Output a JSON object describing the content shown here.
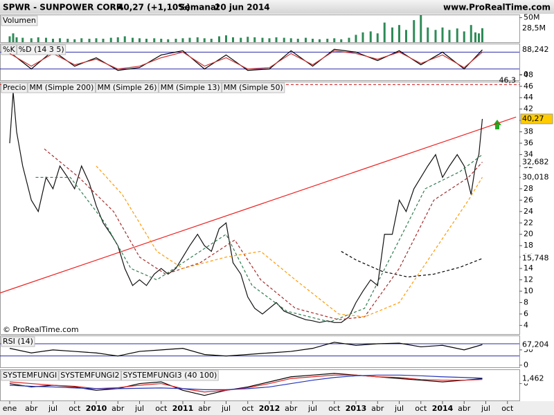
{
  "header": {
    "symbol": "SPWR - SUNPOWER CORP.",
    "quote": "40,27 (+1,10%)",
    "period": "Semanal",
    "date": "20 jun 2014",
    "site": "www.ProRealTime.com"
  },
  "watermark": "© ProRealTime.com",
  "x_axis": {
    "ticks": [
      {
        "value": 2009.0,
        "label": "ene"
      },
      {
        "value": 2009.25,
        "label": "abr"
      },
      {
        "value": 2009.5,
        "label": "jul"
      },
      {
        "value": 2009.75,
        "label": "oct"
      },
      {
        "value": 2010.0,
        "label": "2010"
      },
      {
        "value": 2010.25,
        "label": "abr"
      },
      {
        "value": 2010.5,
        "label": "jul"
      },
      {
        "value": 2010.75,
        "label": "oct"
      },
      {
        "value": 2011.0,
        "label": "2011"
      },
      {
        "value": 2011.25,
        "label": "abr"
      },
      {
        "value": 2011.5,
        "label": "jul"
      },
      {
        "value": 2011.75,
        "label": "oct"
      },
      {
        "value": 2012.0,
        "label": "2012"
      },
      {
        "value": 2012.25,
        "label": "abr"
      },
      {
        "value": 2012.5,
        "label": "jul"
      },
      {
        "value": 2012.75,
        "label": "oct"
      },
      {
        "value": 2013.0,
        "label": "2013"
      },
      {
        "value": 2013.25,
        "label": "abr"
      },
      {
        "value": 2013.5,
        "label": "jul"
      },
      {
        "value": 2013.75,
        "label": "oct"
      },
      {
        "value": 2014.0,
        "label": "2014"
      },
      {
        "value": 2014.25,
        "label": "abr"
      },
      {
        "value": 2014.5,
        "label": "jul"
      },
      {
        "value": 2014.75,
        "label": "oct"
      }
    ]
  },
  "chart_data": [
    {
      "type": "bar",
      "ylim": [
        0,
        55
      ],
      "yticks": [
        {
          "value": 50,
          "label": "50M"
        }
      ],
      "x": [
        2009.0,
        2009.04,
        2009.08,
        2009.15,
        2009.25,
        2009.33,
        2009.42,
        2009.5,
        2009.58,
        2009.67,
        2009.75,
        2009.83,
        2009.92,
        2010.0,
        2010.08,
        2010.17,
        2010.25,
        2010.33,
        2010.42,
        2010.5,
        2010.58,
        2010.67,
        2010.75,
        2010.83,
        2010.92,
        2011.0,
        2011.08,
        2011.17,
        2011.25,
        2011.33,
        2011.42,
        2011.5,
        2011.58,
        2011.67,
        2011.75,
        2011.83,
        2011.92,
        2012.0,
        2012.08,
        2012.17,
        2012.25,
        2012.33,
        2012.42,
        2012.5,
        2012.58,
        2012.67,
        2012.75,
        2012.83,
        2012.92,
        2013.0,
        2013.08,
        2013.17,
        2013.25,
        2013.33,
        2013.42,
        2013.5,
        2013.58,
        2013.67,
        2013.75,
        2013.83,
        2013.92,
        2014.0,
        2014.08,
        2014.17,
        2014.25,
        2014.33,
        2014.38,
        2014.42,
        2014.46
      ],
      "series": [
        {
          "name": "Volumen",
          "color": "#2e8b57",
          "last": {
            "value": 28.5,
            "label": "28,5M"
          },
          "values": [
            12,
            18,
            10,
            9,
            8,
            10,
            9,
            7,
            8,
            7,
            6,
            8,
            7,
            8,
            7,
            9,
            10,
            12,
            9,
            8,
            7,
            8,
            7,
            6,
            7,
            8,
            9,
            10,
            8,
            7,
            12,
            14,
            10,
            9,
            11,
            10,
            9,
            8,
            10,
            9,
            8,
            7,
            9,
            7,
            6,
            7,
            8,
            6,
            9,
            15,
            20,
            22,
            18,
            40,
            30,
            35,
            25,
            45,
            55,
            30,
            25,
            30,
            25,
            28,
            22,
            35,
            20,
            18,
            28.5
          ]
        }
      ]
    },
    {
      "type": "line",
      "ylim": [
        -20,
        108
      ],
      "yticks": [
        0
      ],
      "levels": [
        80,
        20
      ],
      "x": [
        2009.0,
        2009.25,
        2009.5,
        2009.75,
        2010.0,
        2010.25,
        2010.5,
        2010.75,
        2011.0,
        2011.25,
        2011.5,
        2011.75,
        2012.0,
        2012.25,
        2012.5,
        2012.75,
        2013.0,
        2013.25,
        2013.5,
        2013.75,
        2014.0,
        2014.25,
        2014.46
      ],
      "series": [
        {
          "name": "%K",
          "color": "#000000",
          "last": {
            "value": 88.242,
            "label": "88,242"
          },
          "values": [
            80,
            20,
            85,
            30,
            60,
            15,
            25,
            70,
            85,
            20,
            70,
            15,
            20,
            85,
            30,
            90,
            80,
            50,
            85,
            35,
            80,
            20,
            88.242
          ]
        },
        {
          "name": "%D (14 3 5)",
          "color": "#cc3333",
          "values": [
            75,
            30,
            75,
            35,
            55,
            20,
            30,
            60,
            80,
            30,
            60,
            20,
            25,
            75,
            35,
            85,
            75,
            55,
            80,
            40,
            70,
            25,
            80
          ]
        }
      ]
    },
    {
      "type": "line",
      "ylim": [
        2.47,
        46.7
      ],
      "yticks": [
        4,
        6,
        8,
        10,
        12,
        14,
        16,
        18,
        20,
        22,
        24,
        26,
        28,
        30,
        32,
        34,
        36,
        38,
        40,
        42,
        44,
        46,
        48
      ],
      "resistance": {
        "value": 46.3,
        "label": "46,3",
        "color": "#cc0000"
      },
      "trendline": {
        "x": [
          2008.89,
          2014.85
        ],
        "values": [
          9.7,
          40.6
        ],
        "color": "#ee2222"
      },
      "x": [
        2009.0,
        2009.04,
        2009.08,
        2009.15,
        2009.25,
        2009.33,
        2009.42,
        2009.5,
        2009.58,
        2009.67,
        2009.75,
        2009.83,
        2009.92,
        2010.0,
        2010.08,
        2010.17,
        2010.25,
        2010.33,
        2010.42,
        2010.5,
        2010.58,
        2010.67,
        2010.75,
        2010.83,
        2010.92,
        2011.0,
        2011.08,
        2011.17,
        2011.25,
        2011.33,
        2011.42,
        2011.5,
        2011.58,
        2011.67,
        2011.75,
        2011.83,
        2011.92,
        2012.0,
        2012.08,
        2012.17,
        2012.25,
        2012.33,
        2012.42,
        2012.5,
        2012.58,
        2012.67,
        2012.75,
        2012.83,
        2012.92,
        2013.0,
        2013.08,
        2013.17,
        2013.25,
        2013.33,
        2013.42,
        2013.5,
        2013.58,
        2013.67,
        2013.75,
        2013.83,
        2013.92,
        2014.0,
        2014.08,
        2014.17,
        2014.25,
        2014.33,
        2014.38,
        2014.42,
        2014.46
      ],
      "series": [
        {
          "name": "Precio",
          "color": "#111111",
          "box": "#ffcc00",
          "last": {
            "value": 40.27,
            "label": "40,27"
          },
          "values": [
            36,
            45,
            38,
            32,
            26,
            24,
            30,
            28,
            32,
            30,
            28,
            32,
            29,
            25,
            22,
            20,
            18,
            14,
            11,
            12,
            11,
            13,
            14,
            13,
            14,
            16,
            18,
            20,
            18,
            17,
            21,
            22,
            15,
            13,
            9,
            7,
            6,
            7,
            8,
            6.5,
            6,
            5.5,
            5,
            4.8,
            4.5,
            4.8,
            4.5,
            4.5,
            5.5,
            8,
            10,
            12,
            11,
            20,
            20,
            26,
            24,
            28,
            30,
            32,
            34,
            30,
            32,
            34,
            32,
            27,
            32,
            34,
            40.27
          ]
        },
        {
          "name": "MM (Simple 200)",
          "color": "#000000",
          "dash": true,
          "last": {
            "value": 15.748,
            "label": "15,748"
          },
          "x": [
            2012.83,
            2013.0,
            2013.3,
            2013.6,
            2013.9,
            2014.2,
            2014.46
          ],
          "values": [
            17,
            15.5,
            13.5,
            12.5,
            13,
            14.2,
            15.748
          ]
        },
        {
          "name": "MM (Simple 26)",
          "color": "#a52a2a",
          "dash": true,
          "last": {
            "value": 32.682,
            "label": "32,682"
          },
          "x": [
            2009.4,
            2009.8,
            2010.2,
            2010.5,
            2010.8,
            2011.2,
            2011.6,
            2011.9,
            2012.3,
            2012.8,
            2013.1,
            2013.5,
            2013.9,
            2014.3,
            2014.46
          ],
          "values": [
            35,
            30,
            24,
            16,
            13,
            15,
            19,
            12,
            7,
            5,
            5.5,
            14,
            26,
            30,
            32.682
          ]
        },
        {
          "name": "MM (Simple 13)",
          "color": "#2e7d4f",
          "dash": true,
          "x": [
            2009.3,
            2009.7,
            2010.1,
            2010.4,
            2010.7,
            2011.1,
            2011.5,
            2011.8,
            2012.2,
            2012.7,
            2013.1,
            2013.4,
            2013.8,
            2014.2,
            2014.46
          ],
          "values": [
            30,
            30,
            22,
            14,
            12,
            16,
            20,
            11,
            6.5,
            4.6,
            7,
            16,
            28,
            31,
            34
          ]
        },
        {
          "name": "MM (Simple 50)",
          "color": "#ff9900",
          "dash": true,
          "last": {
            "value": 30.018,
            "label": "30,018"
          },
          "x": [
            2010.0,
            2010.3,
            2010.7,
            2011.0,
            2011.5,
            2011.9,
            2012.3,
            2012.8,
            2013.1,
            2013.5,
            2013.9,
            2014.3,
            2014.46
          ],
          "values": [
            32,
            27,
            17,
            14,
            16,
            17,
            12,
            6,
            5.5,
            8,
            17,
            26,
            30.018
          ]
        }
      ]
    },
    {
      "type": "line",
      "ylim": [
        -7,
        95
      ],
      "yticks": [
        0,
        50
      ],
      "levels": [
        70,
        30
      ],
      "x": [
        2009.0,
        2009.25,
        2009.5,
        2009.75,
        2010.0,
        2010.25,
        2010.5,
        2010.75,
        2011.0,
        2011.25,
        2011.5,
        2011.75,
        2012.0,
        2012.25,
        2012.5,
        2012.75,
        2013.0,
        2013.25,
        2013.5,
        2013.75,
        2014.0,
        2014.25,
        2014.46
      ],
      "series": [
        {
          "name": "RSI (14)",
          "color": "#000000",
          "last": {
            "value": 67.204,
            "label": "67,204"
          },
          "values": [
            55,
            40,
            50,
            45,
            40,
            30,
            45,
            50,
            55,
            35,
            30,
            35,
            40,
            45,
            55,
            75,
            65,
            70,
            72,
            60,
            65,
            50,
            67.204
          ]
        }
      ]
    },
    {
      "type": "line",
      "ylim": [
        -5,
        4
      ],
      "yticks": [
        0
      ],
      "x": [
        2009.0,
        2009.25,
        2009.5,
        2009.75,
        2010.0,
        2010.25,
        2010.5,
        2010.75,
        2011.0,
        2011.25,
        2011.5,
        2011.75,
        2012.0,
        2012.25,
        2012.5,
        2012.75,
        2013.0,
        2013.25,
        2013.5,
        2013.75,
        2014.0,
        2014.25,
        2014.46
      ],
      "series": [
        {
          "name": "SYSTEMFUNGI",
          "color": "#000000",
          "last": {
            "value": 1.462,
            "label": "1,462"
          },
          "values": [
            0,
            -1,
            -0.5,
            -1,
            -2,
            -1.5,
            0,
            0.5,
            -2,
            -3.5,
            -2,
            -1,
            0.5,
            2,
            2.5,
            3,
            2.5,
            2,
            1.5,
            1,
            0.5,
            1,
            1.462
          ]
        },
        {
          "name": "SYSTEMFUNGI2",
          "color": "#dd2222",
          "values": [
            0.5,
            0,
            -0.5,
            -0.8,
            -1.5,
            -1.2,
            -0.5,
            0,
            -1.5,
            -2.5,
            -2,
            -1.2,
            0,
            1.5,
            2,
            2.5,
            2.5,
            2,
            1.8,
            1.2,
            1,
            1,
            1.2
          ]
        },
        {
          "name": "SYSTEMFUNGI3 (40 100)",
          "color": "#2233bb",
          "values": [
            -0.5,
            -0.8,
            -1,
            -1.3,
            -1.5,
            -1.5,
            -1.4,
            -1.3,
            -1.5,
            -1.8,
            -1.8,
            -1.5,
            -1,
            0,
            1,
            1.8,
            2.3,
            2.5,
            2.5,
            2.3,
            2,
            1.8,
            1.6
          ]
        }
      ]
    }
  ]
}
